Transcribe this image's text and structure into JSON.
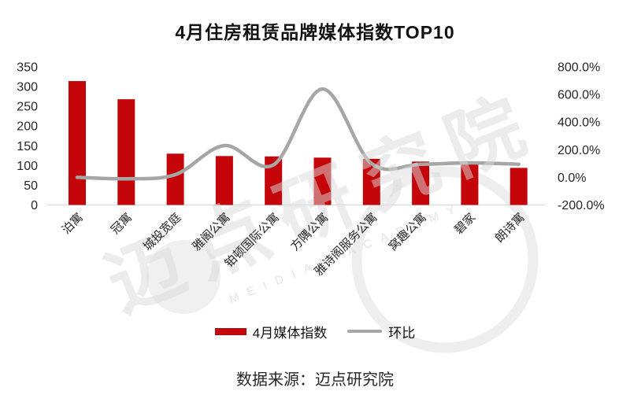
{
  "title": "4月住房租赁品牌媒体指数TOP10",
  "legend": {
    "bar_label": "4月媒体指数",
    "line_label": "环比"
  },
  "footer": {
    "source_note": "数据来源：迈点研究院"
  },
  "watermark": {
    "text_cn": "迈点研究院",
    "text_en": "MEIDIAN ACADEMY"
  },
  "colors": {
    "bar": "#c4060b",
    "line": "#a6a6a6",
    "axis_text": "#262626",
    "axis_line": "#d9d9d9",
    "watermark": "#d9d9d9"
  },
  "chart_data": {
    "type": "combo",
    "title": "4月住房租赁品牌媒体指数TOP10",
    "categories": [
      "泊寓",
      "冠寓",
      "城投宽庭",
      "雅阁公寓",
      "铂顿国际公寓",
      "方隅公寓",
      "雅诗阁服务公寓",
      "窝趣公寓",
      "碧家",
      "朗诗寓"
    ],
    "series": [
      {
        "name": "4月媒体指数",
        "type": "bar",
        "axis": "left",
        "values": [
          314,
          268,
          130,
          124,
          123,
          120,
          117,
          110,
          105,
          94
        ]
      },
      {
        "name": "环比",
        "type": "line",
        "axis": "right",
        "unit": "%",
        "values": [
          0,
          -10,
          20,
          230,
          90,
          640,
          100,
          95,
          105,
          95
        ]
      }
    ],
    "left_axis": {
      "min": 0,
      "max": 350,
      "step": 50,
      "ticks": [
        "350",
        "300",
        "250",
        "200",
        "150",
        "100",
        "50",
        "0"
      ]
    },
    "right_axis": {
      "min": -200,
      "max": 800,
      "step": 200,
      "ticks": [
        "800.0%",
        "600.0%",
        "400.0%",
        "200.0%",
        "0.0%",
        "-200.0%"
      ]
    },
    "grid": false,
    "legend_position": "bottom",
    "smooth_line": true
  }
}
